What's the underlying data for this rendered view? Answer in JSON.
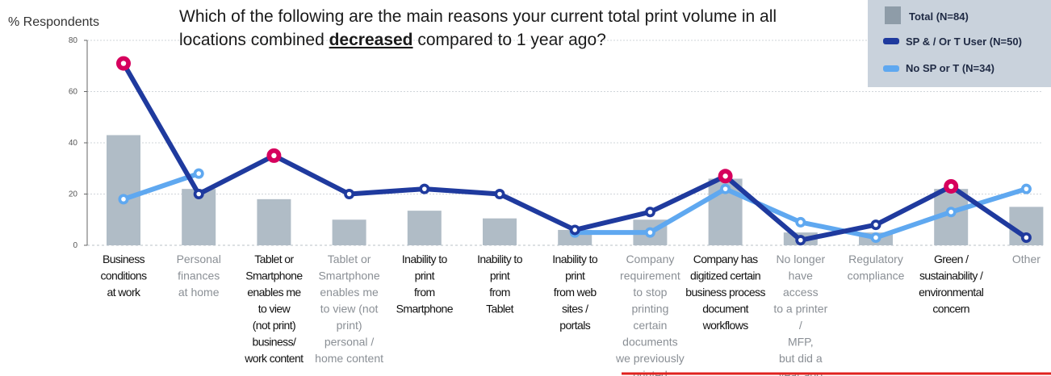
{
  "chart_data": {
    "type": "bar",
    "title_parts": [
      "Which of the following are the main reasons your current total print volume in all",
      "locations combined ",
      "decreased",
      " compared to 1 year ago?"
    ],
    "ylabel": "% Respondents",
    "ylim": [
      0,
      80
    ],
    "yticks": [
      "0",
      "20",
      "40",
      "60",
      "80"
    ],
    "grid": true,
    "legend_position": "top-right",
    "categories": [
      [
        "Business",
        "conditions",
        "at work"
      ],
      [
        "Personal",
        "finances",
        "at home"
      ],
      [
        "Tablet or",
        "Smartphone",
        "enables me",
        "to view",
        "(not print)",
        "business/",
        "work content"
      ],
      [
        "Tablet or",
        "Smartphone",
        "enables me",
        "to view (not",
        "print)",
        "personal /",
        "home content"
      ],
      [
        "Inability to",
        "print",
        "from",
        "Smartphone"
      ],
      [
        "Inability to",
        "print",
        "from",
        "Tablet"
      ],
      [
        "Inability to",
        "print",
        "from web",
        "sites /",
        "portals"
      ],
      [
        "Company",
        "requirement",
        "to stop",
        "printing",
        "certain",
        "documents",
        "we previously",
        "printed"
      ],
      [
        "Company has",
        "digitized certain",
        "business process",
        "document",
        "workflows"
      ],
      [
        "No longer",
        "have",
        "access",
        "to a printer",
        "/",
        "MFP,",
        "but did a",
        "year ago"
      ],
      [
        "Regulatory",
        "compliance"
      ],
      [
        "Green /",
        "sustainability /",
        "environmental",
        "concern"
      ],
      [
        "Other"
      ]
    ],
    "category_styles": [
      "dark",
      "gray",
      "dark",
      "gray",
      "dark",
      "dark",
      "dark",
      "gray",
      "dark",
      "gray",
      "gray",
      "dark",
      "gray"
    ],
    "series": [
      {
        "name": "Total (N=84)",
        "type": "bar",
        "color": "#b0bcc6",
        "values": [
          43,
          22,
          18,
          10,
          13.5,
          10.5,
          6,
          10,
          26,
          5,
          5,
          22,
          15
        ]
      },
      {
        "name": "SP & / Or T User (N=50)",
        "type": "line",
        "color": "#1f3a9e",
        "values": [
          71,
          20,
          35,
          20,
          22,
          20,
          6,
          13,
          27,
          2,
          8,
          23,
          3
        ]
      },
      {
        "name": "No SP or T (N=34)",
        "type": "line",
        "color": "#5fa8f0",
        "values": [
          18,
          28,
          null,
          null,
          null,
          null,
          5,
          5,
          22,
          9,
          3,
          13,
          22
        ]
      }
    ],
    "highlighted_points": [
      0,
      2,
      8,
      11
    ],
    "highlight_color": "#d6005d"
  }
}
